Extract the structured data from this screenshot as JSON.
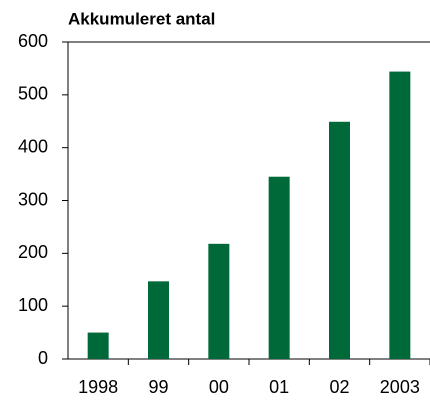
{
  "chart_data": {
    "type": "bar",
    "title": "Akkumuleret antal",
    "categories": [
      "1998",
      "99",
      "00",
      "01",
      "02",
      "2003"
    ],
    "values": [
      50,
      147,
      218,
      345,
      449,
      544
    ],
    "color": "#00693a",
    "ylim": [
      0,
      600
    ],
    "yticks": [
      0,
      100,
      200,
      300,
      400,
      500,
      600
    ]
  }
}
